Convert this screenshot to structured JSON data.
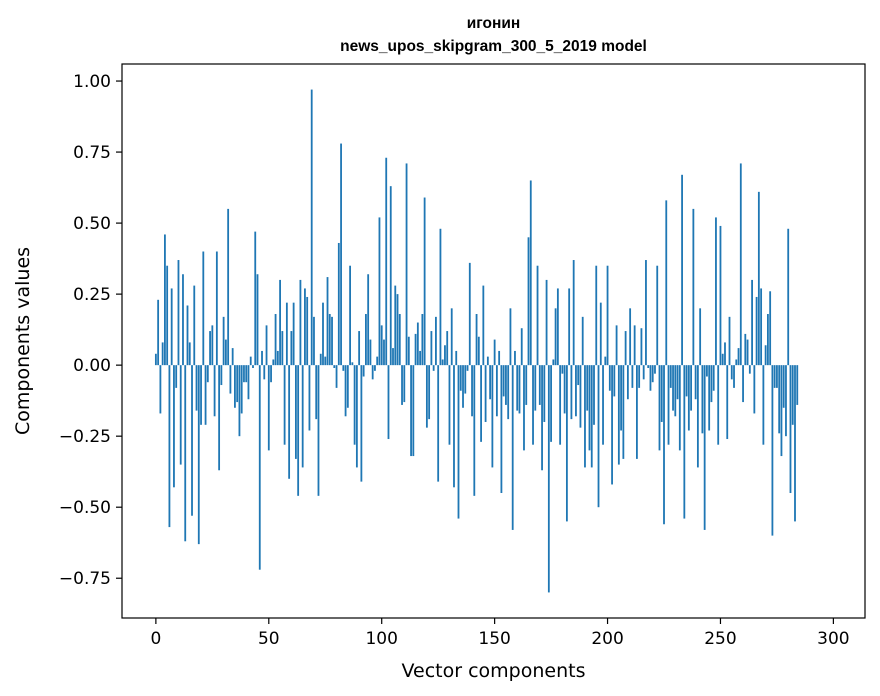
{
  "chart_data": {
    "type": "bar",
    "title_line1": "игонин",
    "title_line2": "news_upos_skipgram_300_5_2019 model",
    "xlabel": "Vector components",
    "ylabel": "Components values",
    "xlim": [
      -15,
      314
    ],
    "ylim": [
      -0.89,
      1.06
    ],
    "xticks": [
      0,
      50,
      100,
      150,
      200,
      250,
      300
    ],
    "xtick_labels": [
      "0",
      "50",
      "100",
      "150",
      "200",
      "250",
      "300"
    ],
    "yticks": [
      -0.75,
      -0.5,
      -0.25,
      0.0,
      0.25,
      0.5,
      0.75,
      1.0
    ],
    "ytick_labels": [
      "−0.75",
      "−0.50",
      "−0.25",
      "0.00",
      "0.25",
      "0.50",
      "0.75",
      "1.00"
    ],
    "bar_color": "#1f77b4",
    "values": [
      0.04,
      0.23,
      -0.17,
      0.08,
      0.46,
      0.35,
      -0.57,
      0.27,
      -0.43,
      -0.08,
      0.37,
      -0.35,
      0.32,
      -0.62,
      0.21,
      0.08,
      -0.53,
      0.28,
      -0.16,
      -0.63,
      -0.21,
      0.4,
      -0.21,
      -0.06,
      0.12,
      0.14,
      -0.18,
      0.4,
      -0.37,
      -0.07,
      0.17,
      0.09,
      0.55,
      -0.1,
      0.06,
      -0.15,
      -0.13,
      -0.25,
      -0.17,
      -0.06,
      -0.06,
      -0.12,
      0.03,
      -0.01,
      0.47,
      0.32,
      -0.72,
      0.05,
      -0.05,
      0.14,
      -0.3,
      -0.06,
      0.02,
      0.18,
      0.05,
      0.3,
      0.12,
      -0.28,
      0.22,
      -0.4,
      0.12,
      0.22,
      -0.33,
      -0.46,
      0.3,
      -0.36,
      0.27,
      0.24,
      -0.23,
      0.97,
      0.17,
      -0.19,
      -0.46,
      0.04,
      0.22,
      0.03,
      0.31,
      0.18,
      0.17,
      -0.01,
      -0.08,
      0.43,
      0.78,
      -0.02,
      -0.18,
      -0.15,
      0.35,
      0.01,
      -0.28,
      -0.36,
      0.12,
      -0.41,
      -0.04,
      0.18,
      0.32,
      0.09,
      -0.05,
      -0.02,
      0.03,
      0.52,
      0.14,
      0.09,
      0.73,
      -0.26,
      0.63,
      0.06,
      0.28,
      0.25,
      0.18,
      -0.14,
      -0.13,
      0.71,
      0.1,
      -0.32,
      -0.32,
      0.11,
      0.15,
      0.05,
      0.18,
      0.59,
      -0.22,
      -0.19,
      0.12,
      -0.02,
      0.17,
      -0.41,
      0.48,
      0.02,
      0.07,
      0.12,
      -0.28,
      0.2,
      -0.43,
      0.05,
      -0.54,
      -0.09,
      -0.15,
      -0.1,
      -0.02,
      0.36,
      -0.18,
      -0.46,
      0.18,
      0.1,
      -0.27,
      0.28,
      -0.2,
      0.03,
      -0.12,
      -0.36,
      0.09,
      -0.18,
      0.05,
      -0.45,
      -0.11,
      -0.14,
      -0.19,
      0.2,
      -0.58,
      0.05,
      -0.16,
      -0.17,
      0.13,
      -0.3,
      -0.14,
      0.45,
      0.65,
      -0.28,
      -0.16,
      0.35,
      -0.14,
      -0.37,
      -0.2,
      0.3,
      -0.8,
      -0.27,
      0.02,
      0.2,
      0.27,
      -0.28,
      -0.03,
      -0.17,
      -0.55,
      0.27,
      -0.19,
      0.37,
      -0.18,
      -0.07,
      -0.22,
      0.17,
      -0.36,
      -0.16,
      -0.3,
      -0.36,
      -0.21,
      0.35,
      -0.5,
      0.22,
      -0.28,
      0.03,
      0.35,
      -0.09,
      -0.42,
      -0.11,
      0.14,
      -0.35,
      -0.23,
      -0.33,
      0.12,
      -0.12,
      0.2,
      -0.08,
      0.14,
      -0.33,
      -0.08,
      0.13,
      -0.05,
      0.37,
      -0.01,
      -0.09,
      -0.06,
      -0.03,
      0.35,
      -0.3,
      -0.2,
      -0.56,
      0.58,
      -0.28,
      -0.08,
      -0.16,
      -0.18,
      -0.12,
      -0.3,
      0.67,
      -0.54,
      -0.11,
      -0.23,
      -0.16,
      0.55,
      -0.12,
      -0.36,
      0.2,
      -0.24,
      -0.58,
      -0.04,
      -0.23,
      -0.13,
      -0.09,
      0.52,
      -0.28,
      0.49,
      0.04,
      0.08,
      -0.26,
      0.17,
      -0.05,
      -0.08,
      0.02,
      0.06,
      0.71,
      -0.13,
      0.11,
      0.09,
      -0.03,
      0.3,
      -0.17,
      0.24,
      0.61,
      0.27,
      -0.28,
      0.07,
      0.18,
      0.26,
      -0.6,
      -0.08,
      -0.08,
      -0.24,
      -0.32,
      -0.15,
      -0.25,
      0.48,
      -0.45,
      -0.21,
      -0.55,
      -0.14
    ]
  }
}
